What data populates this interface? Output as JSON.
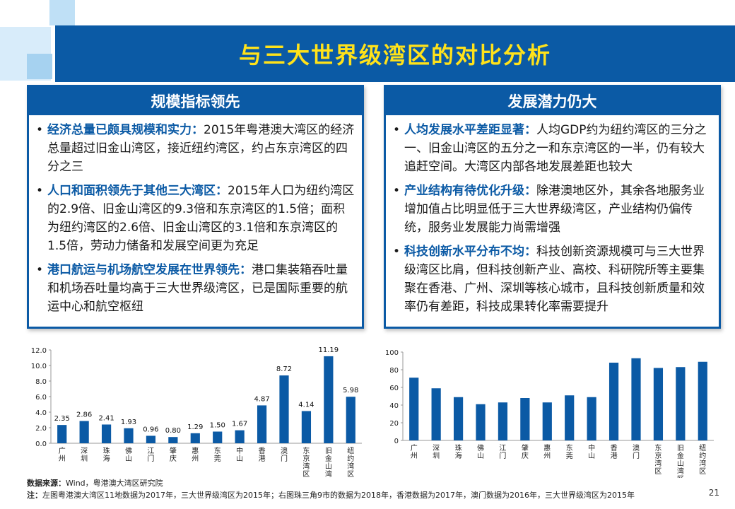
{
  "title": "与三大世界级湾区的对比分析",
  "left_panel": {
    "heading": "规模指标领先",
    "items": [
      {
        "bold": "经济总量已颇具规模和实力：",
        "text": "2015年粤港澳大湾区的经济总量超过旧金山湾区，接近纽约湾区，约占东京湾区的四分之三"
      },
      {
        "bold": "人口和面积领先于其他三大湾区：",
        "text": "2015年人口为纽约湾区的2.9倍、旧金山湾区的9.3倍和东京湾区的1.5倍；面积为纽约湾区的2.6倍、旧金山湾区的3.1倍和东京湾区的1.5倍，劳动力储备和发展空间更为充足"
      },
      {
        "bold": "港口航运与机场航空发展在世界领先：",
        "text": "港口集装箱吞吐量和机场吞吐量均高于三大世界级湾区，已是国际重要的航运中心和航空枢纽"
      }
    ]
  },
  "right_panel": {
    "heading": "发展潜力仍大",
    "items": [
      {
        "bold": "人均发展水平差距显著：",
        "text": "人均GDP约为纽约湾区的三分之一、旧金山湾区的五分之一和东京湾区的一半，仍有较大追赶空间。大湾区内部各地发展差距也较大"
      },
      {
        "bold": "产业结构有待优化升级：",
        "text": "除港澳地区外，其余各地服务业增加值占比明显低于三大世界级湾区，产业结构仍偏传统，服务业发展能力尚需增强"
      },
      {
        "bold": "科技创新水平分布不均：",
        "text": "科技创新资源规模可与三大世界级湾区比肩，但科技创新产业、高校、科研院所等主要集聚在香港、广州、深圳等核心城市，且科技创新质量和效率仍有差距，科技成果转化率需要提升"
      }
    ]
  },
  "chart_data": [
    {
      "type": "bar",
      "categories": [
        "广州",
        "深圳",
        "珠海",
        "佛山",
        "江门",
        "肇庆",
        "惠州",
        "东莞",
        "中山",
        "香港",
        "澳门",
        "东京湾区",
        "旧金山湾区",
        "纽约湾区"
      ],
      "values": [
        2.35,
        2.86,
        2.41,
        1.93,
        0.96,
        0.8,
        1.29,
        1.5,
        1.67,
        4.87,
        8.72,
        4.14,
        11.19,
        5.98
      ],
      "value_labels": [
        "2.35",
        "2.86",
        "2.41",
        "1.93",
        "0.96",
        "0.80",
        "1.29",
        "1.50",
        "1.67",
        "4.87",
        "8.72",
        "4.14",
        "11.19",
        "5.98"
      ],
      "yticks": [
        "0.0",
        "2.0",
        "4.0",
        "6.0",
        "8.0",
        "10.0",
        "12.0"
      ],
      "ylim": [
        0,
        12
      ],
      "color": "#0b5aa5"
    },
    {
      "type": "bar",
      "categories": [
        "广州",
        "深圳",
        "珠海",
        "佛山",
        "江门",
        "肇庆",
        "惠州",
        "东莞",
        "中山",
        "香港",
        "澳门",
        "东京湾区",
        "旧金山湾区",
        "纽约湾区"
      ],
      "values": [
        71,
        59,
        49,
        41,
        43,
        48,
        43,
        51,
        49,
        88,
        93,
        82,
        83,
        89
      ],
      "yticks": [
        "0",
        "20",
        "40",
        "60",
        "80",
        "100"
      ],
      "ylim": [
        0,
        100
      ],
      "color": "#0b5aa5"
    }
  ],
  "footer": {
    "source_label": "数据来源：",
    "source_text": "Wind，粤港澳大湾区研究院",
    "note_label": "注：",
    "note_text": "左图粤港澳大湾区11地数据为2017年，三大世界级湾区为2015年；右图珠三角9市的数据为2018年，香港数据为2017年，澳门数据为2016年，三大世界级湾区为2015年"
  },
  "page_number": "21"
}
